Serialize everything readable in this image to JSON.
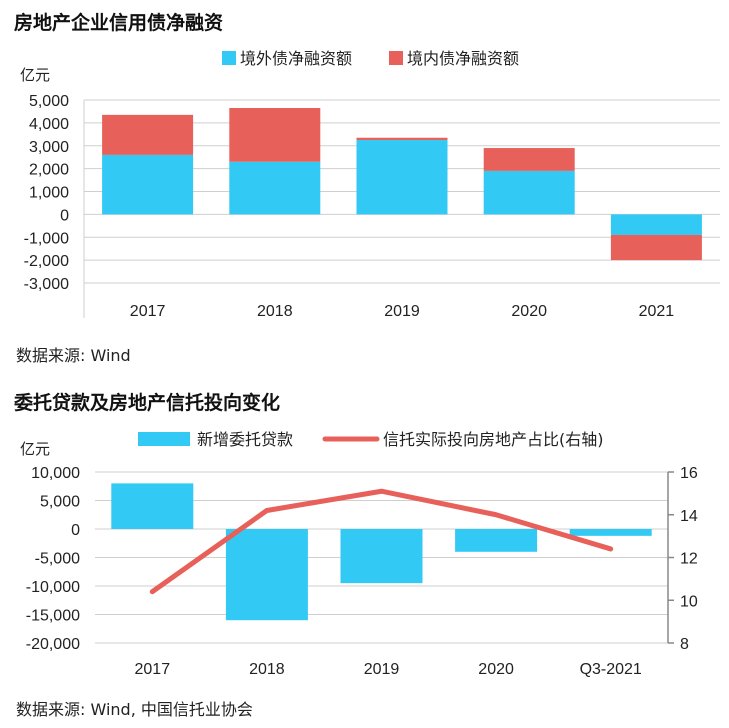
{
  "chart1": {
    "title": "房地产企业信用债净融资",
    "source": "数据来源: Wind",
    "unit": "亿元",
    "colors": {
      "overseas": "#33C9F5",
      "domestic": "#E8605A",
      "grid": "#cfcfcf"
    },
    "chart_data": {
      "type": "bar",
      "stacked": true,
      "categories": [
        "2017",
        "2018",
        "2019",
        "2020",
        "2021"
      ],
      "series": [
        {
          "name": "境外债净融资额",
          "values": [
            2600,
            2300,
            3250,
            1900,
            -900
          ]
        },
        {
          "name": "境内债净融资额",
          "values": [
            1750,
            2350,
            100,
            1000,
            -1100
          ]
        }
      ],
      "ylim": [
        -3000,
        5000
      ],
      "yticks": [
        "5,000",
        "4,000",
        "3,000",
        "2,000",
        "1,000",
        "0",
        "-1,000",
        "-2,000",
        "-3,000"
      ],
      "ytick_values": [
        5000,
        4000,
        3000,
        2000,
        1000,
        0,
        -1000,
        -2000,
        -3000
      ],
      "grid": true,
      "legend": "top"
    }
  },
  "chart2": {
    "title": "委托贷款及房地产信托投向变化",
    "source": "数据来源: Wind, 中国信托业协会",
    "unit": "亿元",
    "colors": {
      "bars": "#33C9F5",
      "line": "#E8605A",
      "grid": "#cfcfcf"
    },
    "chart_data": {
      "type": "bar",
      "categories": [
        "2017",
        "2018",
        "2019",
        "2020",
        "Q3-2021"
      ],
      "series": [
        {
          "name": "新增委托贷款",
          "type": "bar",
          "axis": "left",
          "values": [
            8000,
            -16000,
            -9500,
            -4000,
            -1200
          ]
        },
        {
          "name": "信托实际投向房地产占比(右轴)",
          "type": "line",
          "axis": "right",
          "values": [
            10.4,
            14.2,
            15.1,
            14.0,
            12.4
          ]
        }
      ],
      "ylim": [
        -20000,
        10000
      ],
      "yticks": [
        "10,000",
        "5,000",
        "0",
        "-5,000",
        "-10,000",
        "-15,000",
        "-20,000"
      ],
      "ytick_values": [
        10000,
        5000,
        0,
        -5000,
        -10000,
        -15000,
        -20000
      ],
      "y2lim": [
        8,
        16
      ],
      "y2ticks": [
        "16",
        "14",
        "12",
        "10",
        "8"
      ],
      "y2tick_values": [
        16,
        14,
        12,
        10,
        8
      ],
      "grid": true,
      "legend": "top"
    }
  }
}
